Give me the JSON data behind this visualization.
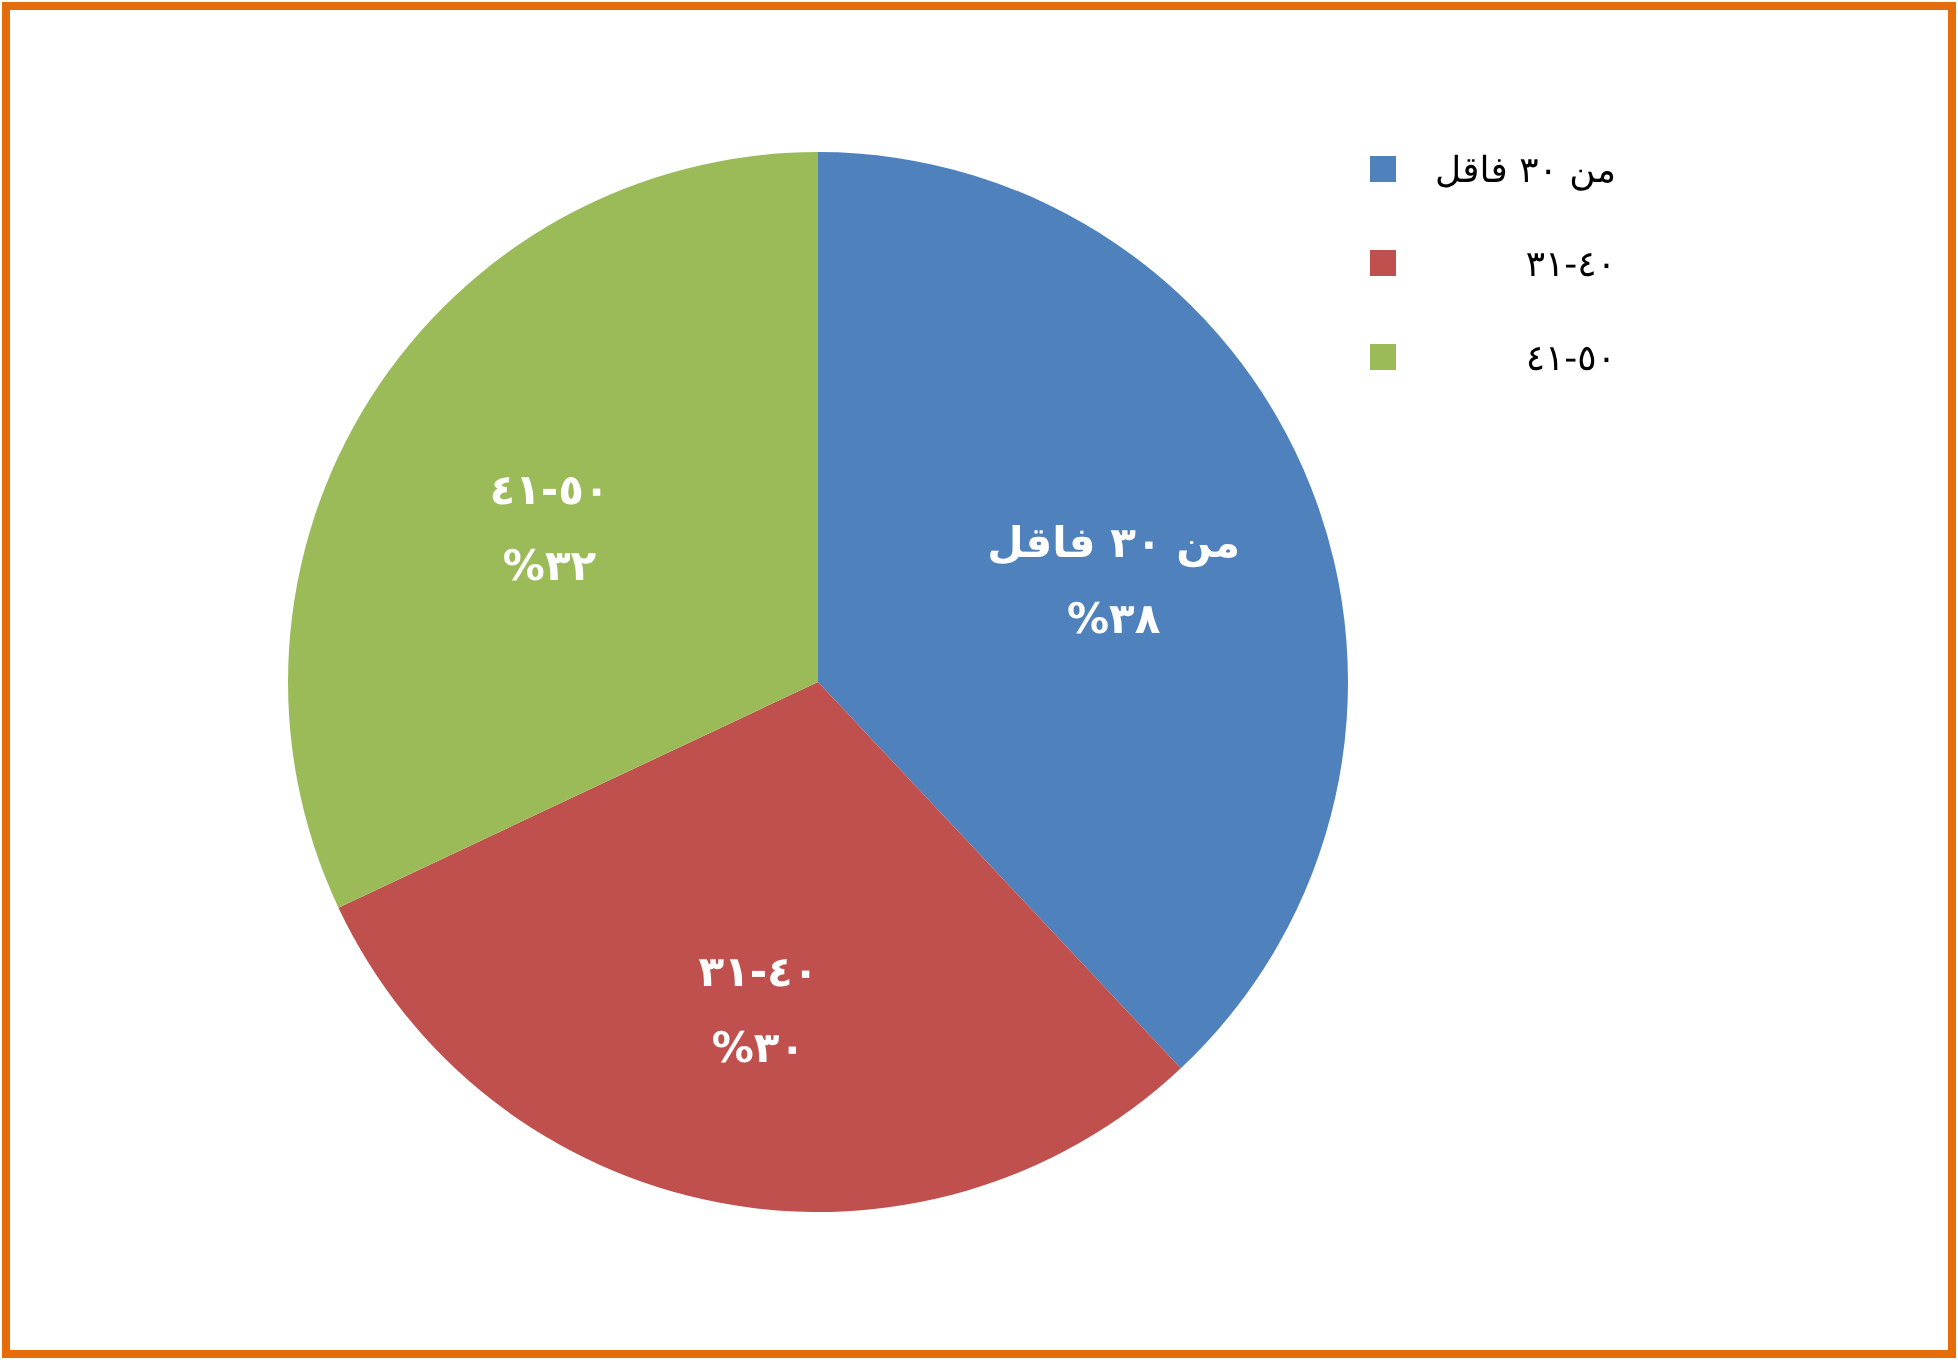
{
  "chart_data": {
    "type": "pie",
    "categories": [
      "من ٣٠ فاقل",
      "٣١-٤٠",
      "٤١-٥٠"
    ],
    "values": [
      38,
      30,
      32
    ],
    "colors": [
      "#4f81bd",
      "#c0504d",
      "#9bbb59"
    ],
    "value_labels": [
      "%٣٨",
      "%٣٠",
      "%٣٢"
    ],
    "legend": "top right"
  }
}
